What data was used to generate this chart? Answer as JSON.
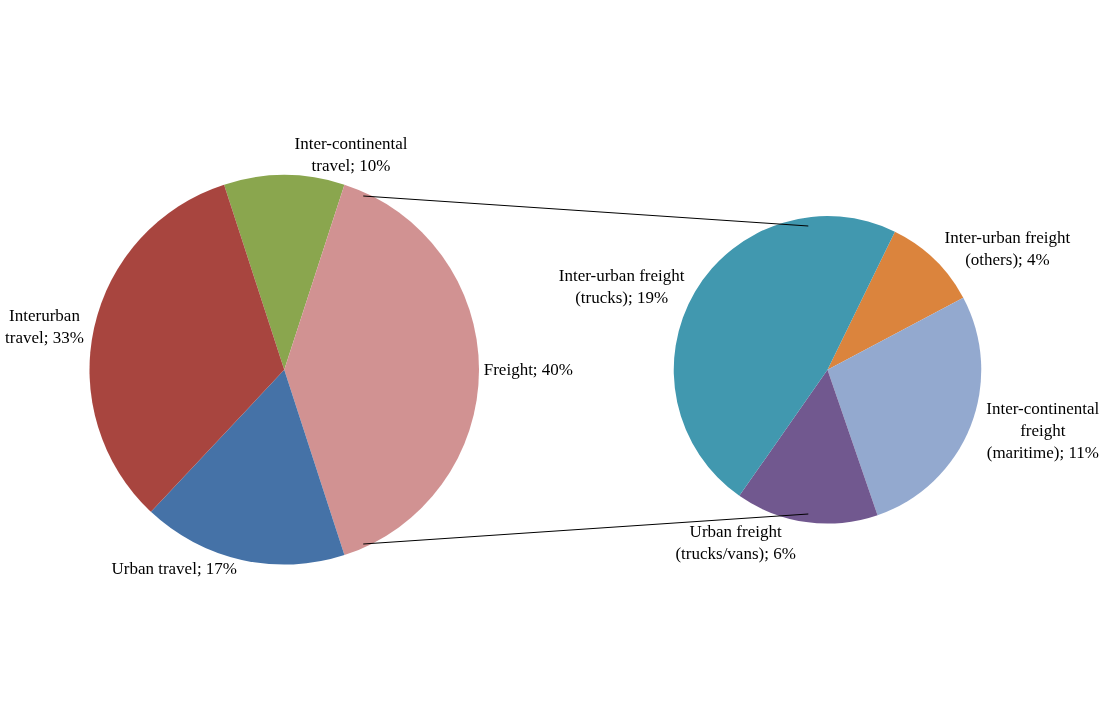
{
  "chart_data": [
    {
      "type": "pie",
      "categories": [
        "Inter-continental travel",
        "Freight",
        "Urban travel",
        "Interurban travel"
      ],
      "values": [
        10,
        40,
        17,
        33
      ],
      "value_labels": [
        "10%",
        "40%",
        "17%",
        "33%"
      ],
      "colors": [
        "#8aa64e",
        "#d19292",
        "#4572a7",
        "#a8453f"
      ]
    },
    {
      "type": "pie",
      "categories": [
        "Inter-urban freight (others)",
        "Inter-continental freight (maritime)",
        "Urban freight (trucks/vans)",
        "Inter-urban freight (trucks)"
      ],
      "values": [
        4,
        11,
        6,
        19
      ],
      "value_labels": [
        "4%",
        "11%",
        "6%",
        "19%"
      ],
      "colors": [
        "#db843d",
        "#93a9cf",
        "#71588f",
        "#4198af"
      ]
    }
  ]
}
